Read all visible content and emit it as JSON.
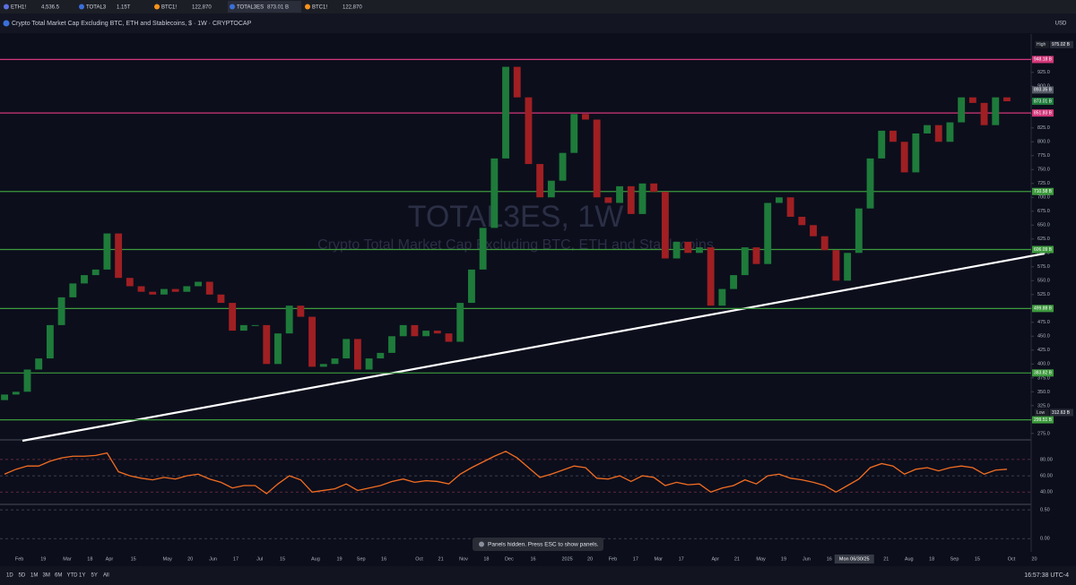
{
  "tabs": [
    {
      "symbol": "ETH1!",
      "price": "4,536.5"
    },
    {
      "symbol": "TOTAL3",
      "price": "1.15T"
    },
    {
      "symbol": "BTC1!",
      "price": "122,870"
    },
    {
      "symbol": "TOTAL3ES",
      "price": "873.01 B"
    },
    {
      "symbol": "BTC1!",
      "price": "122,870"
    }
  ],
  "legend": {
    "title": "Crypto Total Market Cap Excluding BTC, ETH and Stablecoins, $ · 1W · CRYPTOCAP",
    "currency": "USD"
  },
  "watermark": {
    "symbol": "TOTAL3ES, 1W",
    "description": "Crypto Total Market Cap Excluding BTC, ETH and Stablecoins"
  },
  "chart_data": {
    "type": "candlestick",
    "up_color": "#1e7b3a",
    "down_color": "#a01f22",
    "xlim": [
      -0.4,
      90.6
    ],
    "ylim": [
      265,
      994
    ],
    "open": [
      335,
      345,
      350,
      390,
      410,
      470,
      520,
      545,
      560,
      570,
      635,
      555,
      540,
      530,
      525,
      535,
      530,
      540,
      548,
      525,
      510,
      460,
      470,
      470,
      400,
      455,
      505,
      485,
      395,
      400,
      410,
      445,
      390,
      410,
      420,
      450,
      470,
      450,
      460,
      455,
      440,
      510,
      570,
      645,
      770,
      935,
      880,
      760,
      700,
      730,
      780,
      850,
      840,
      700,
      690,
      720,
      670,
      725,
      710,
      590,
      620,
      600,
      610,
      505,
      535,
      560,
      610,
      580,
      690,
      700,
      665,
      650,
      630,
      605,
      550,
      600,
      680,
      770,
      820,
      800,
      745,
      815,
      830,
      800,
      835,
      880,
      870,
      830,
      880
    ],
    "close": [
      345,
      350,
      390,
      410,
      470,
      520,
      545,
      560,
      570,
      635,
      555,
      540,
      530,
      525,
      535,
      530,
      540,
      548,
      525,
      510,
      460,
      470,
      470,
      400,
      455,
      505,
      485,
      395,
      400,
      410,
      445,
      390,
      410,
      420,
      450,
      470,
      450,
      460,
      455,
      440,
      510,
      570,
      645,
      770,
      935,
      880,
      760,
      700,
      730,
      780,
      850,
      840,
      700,
      690,
      720,
      670,
      725,
      710,
      590,
      620,
      600,
      610,
      505,
      535,
      560,
      610,
      580,
      690,
      700,
      665,
      650,
      630,
      605,
      550,
      600,
      680,
      770,
      820,
      800,
      745,
      815,
      830,
      800,
      835,
      880,
      870,
      830,
      880,
      873
    ],
    "yticks": [
      {
        "value": 275,
        "label": "275.0"
      },
      {
        "value": 300,
        "label": "300.0"
      },
      {
        "value": 325,
        "label": "325.0"
      },
      {
        "value": 350,
        "label": "350.0"
      },
      {
        "value": 375,
        "label": "375.0"
      },
      {
        "value": 400,
        "label": "400.0"
      },
      {
        "value": 425,
        "label": "425.0"
      },
      {
        "value": 450,
        "label": "450.0"
      },
      {
        "value": 475,
        "label": "475.0"
      },
      {
        "value": 500,
        "label": "500.0"
      },
      {
        "value": 525,
        "label": "525.0"
      },
      {
        "value": 550,
        "label": "550.0"
      },
      {
        "value": 575,
        "label": "575.0"
      },
      {
        "value": 600,
        "label": "600.0"
      },
      {
        "value": 625,
        "label": "625.0"
      },
      {
        "value": 650,
        "label": "650.0"
      },
      {
        "value": 675,
        "label": "675.0"
      },
      {
        "value": 700,
        "label": "700.0"
      },
      {
        "value": 725,
        "label": "725.0"
      },
      {
        "value": 750,
        "label": "750.0"
      },
      {
        "value": 775,
        "label": "775.0"
      },
      {
        "value": 800,
        "label": "800.0"
      },
      {
        "value": 825,
        "label": "825.0"
      },
      {
        "value": 850,
        "label": "850.0"
      },
      {
        "value": 875,
        "label": "875.0"
      },
      {
        "value": 900,
        "label": "900.0"
      },
      {
        "value": 925,
        "label": "925.0"
      },
      {
        "value": 950,
        "label": "950.0"
      }
    ],
    "levels": [
      {
        "value": 948.18,
        "label": "948.18 B",
        "color": "#d2377a"
      },
      {
        "value": 851.83,
        "label": "851.83 B",
        "color": "#d2377a"
      },
      {
        "value": 710.58,
        "label": "710.58 B",
        "color": "#3d9a3d"
      },
      {
        "value": 606.09,
        "label": "606.09 B",
        "color": "#3d9a3d"
      },
      {
        "value": 499.88,
        "label": "499.88 B",
        "color": "#3d9a3d"
      },
      {
        "value": 383.82,
        "label": "383.82 B",
        "color": "#3d9a3d"
      },
      {
        "value": 299.51,
        "label": "299.51 B",
        "color": "#3d9a3d"
      }
    ],
    "price_badges": [
      {
        "value": 893.35,
        "label": "893.35 B",
        "color": "#555a66"
      },
      {
        "value": 873.01,
        "label": "873.01 B",
        "color": "#1e7b3a"
      }
    ],
    "high": {
      "name": "High",
      "value": 975.02,
      "label": "975.02 B"
    },
    "low": {
      "name": "Low",
      "value": 312.63,
      "label": "312.63 B"
    },
    "xticks": [
      {
        "value": 1.3,
        "label": "Feb"
      },
      {
        "value": 3.4,
        "label": "19"
      },
      {
        "value": 5.5,
        "label": "Mar"
      },
      {
        "value": 7.5,
        "label": "18"
      },
      {
        "value": 9.2,
        "label": "Apr"
      },
      {
        "value": 11.3,
        "label": "15"
      },
      {
        "value": 14.3,
        "label": "May"
      },
      {
        "value": 16.3,
        "label": "20"
      },
      {
        "value": 18.3,
        "label": "Jun"
      },
      {
        "value": 20.3,
        "label": "17"
      },
      {
        "value": 22.4,
        "label": "Jul"
      },
      {
        "value": 24.4,
        "label": "15"
      },
      {
        "value": 27.3,
        "label": "Aug"
      },
      {
        "value": 29.4,
        "label": "19"
      },
      {
        "value": 31.3,
        "label": "Sep"
      },
      {
        "value": 33.3,
        "label": "16"
      },
      {
        "value": 36.4,
        "label": "Oct"
      },
      {
        "value": 38.3,
        "label": "21"
      },
      {
        "value": 40.3,
        "label": "Nov"
      },
      {
        "value": 42.3,
        "label": "18"
      },
      {
        "value": 44.3,
        "label": "Dec"
      },
      {
        "value": 46.4,
        "label": "16"
      },
      {
        "value": 49.4,
        "label": "2025"
      },
      {
        "value": 51.4,
        "label": "20"
      },
      {
        "value": 53.4,
        "label": "Feb"
      },
      {
        "value": 55.4,
        "label": "17"
      },
      {
        "value": 57.4,
        "label": "Mar"
      },
      {
        "value": 59.4,
        "label": "17"
      },
      {
        "value": 62.4,
        "label": "Apr"
      },
      {
        "value": 64.3,
        "label": "21"
      },
      {
        "value": 66.4,
        "label": "May"
      },
      {
        "value": 68.4,
        "label": "19"
      },
      {
        "value": 70.4,
        "label": "Jun"
      },
      {
        "value": 72.4,
        "label": "16"
      },
      {
        "value": 74.6,
        "label": "Mon 06/30/25"
      },
      {
        "value": 77.4,
        "label": "21"
      },
      {
        "value": 79.4,
        "label": "Aug"
      },
      {
        "value": 81.4,
        "label": "18"
      },
      {
        "value": 83.4,
        "label": "Sep"
      },
      {
        "value": 85.4,
        "label": "15"
      },
      {
        "value": 88.4,
        "label": "Oct"
      },
      {
        "value": 90.4,
        "label": "20"
      }
    ],
    "rsi": {
      "color": "#f26d21",
      "ylim": [
        26,
        103
      ],
      "yticks": [
        {
          "value": 80,
          "label": "80.00"
        },
        {
          "value": 60,
          "label": "60.00"
        },
        {
          "value": 40,
          "label": "40.00"
        }
      ],
      "values": [
        62,
        68,
        72,
        72,
        78,
        82,
        84,
        84,
        85,
        88,
        65,
        60,
        57,
        55,
        58,
        56,
        60,
        62,
        56,
        52,
        45,
        48,
        48,
        38,
        50,
        60,
        55,
        40,
        42,
        44,
        50,
        42,
        45,
        48,
        53,
        56,
        52,
        54,
        53,
        50,
        62,
        70,
        77,
        84,
        90,
        82,
        70,
        58,
        62,
        67,
        72,
        70,
        57,
        56,
        60,
        53,
        60,
        58,
        48,
        52,
        49,
        50,
        40,
        45,
        48,
        55,
        50,
        60,
        62,
        57,
        55,
        52,
        48,
        40,
        48,
        56,
        70,
        75,
        72,
        62,
        68,
        70,
        66,
        70,
        72,
        70,
        62,
        67,
        68
      ]
    },
    "oscillator": {
      "ylim": [
        -0.23,
        0.58
      ],
      "yticks": [
        {
          "value": 0.5,
          "label": "0.50"
        },
        {
          "value": 0,
          "label": "0.00"
        }
      ]
    }
  },
  "footer": {
    "ranges": [
      "1D",
      "5D",
      "1M",
      "3M",
      "6M",
      "YTD",
      "1Y",
      "5Y",
      "All"
    ],
    "clock": "16:57:38 UTC-4"
  },
  "toast": "Panels hidden. Press ESC to show panels."
}
